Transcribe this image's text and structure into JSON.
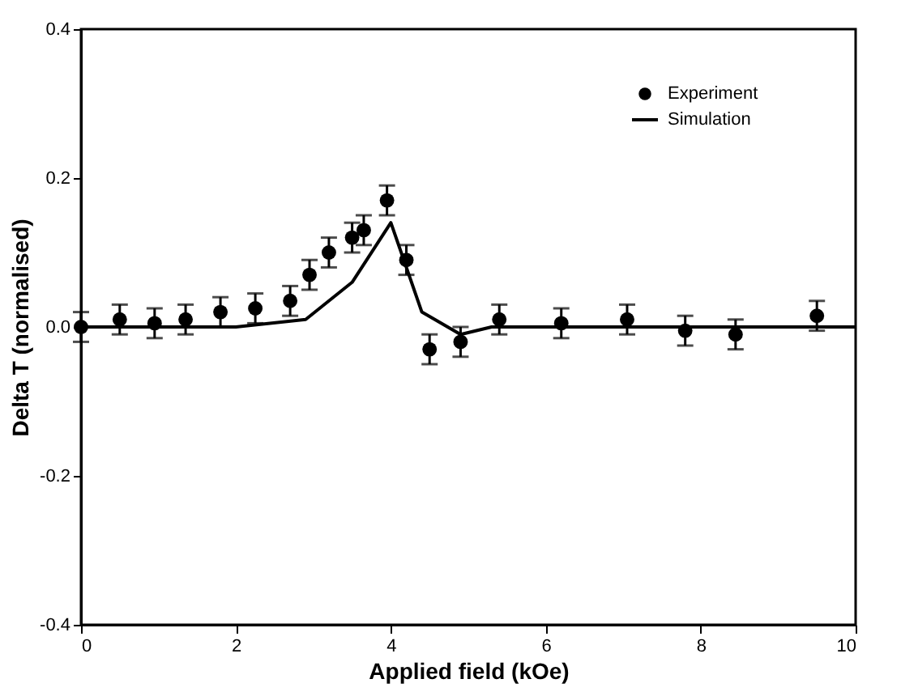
{
  "chart_data": {
    "type": "scatter",
    "xlabel": "Applied field (kOe)",
    "ylabel": "Delta T (normalised)",
    "xlim": [
      0,
      10
    ],
    "xticks": [
      0,
      2,
      4,
      6,
      8,
      10
    ],
    "ylim": [
      -0.4,
      0.4
    ],
    "yticks": [
      -0.4,
      -0.2,
      {
        "value": 0,
        "label": "0.0"
      },
      0.2,
      0.4
    ],
    "grid": false,
    "legend": "top right",
    "series": [
      {
        "name": "Experiment",
        "marker": "circle",
        "color": "#000000",
        "x": [
          0,
          0.5,
          0.95,
          1.35,
          1.8,
          2.25,
          2.7,
          2.95,
          3.2,
          3.5,
          3.65,
          3.95,
          4.2,
          4.5,
          4.9,
          5.4,
          6.2,
          7.05,
          7.8,
          8.45,
          9.5
        ],
        "values": [
          0,
          0.01,
          0.005,
          0.01,
          0.02,
          0.025,
          0.035,
          0.07,
          0.1,
          0.12,
          0.13,
          0.17,
          0.09,
          -0.03,
          -0.02,
          0.01,
          0.005,
          0.01,
          -0.005,
          -0.01,
          0.015
        ],
        "errors": [
          0.02,
          0.02,
          0.02,
          0.02,
          0.02,
          0.02,
          0.02,
          0.02,
          0.02,
          0.02,
          0.02,
          0.02,
          0.02,
          0.02,
          0.02,
          0.02,
          0.02,
          0.02,
          0.02,
          0.02,
          0.02
        ]
      },
      {
        "name": "Simulation",
        "type": "line",
        "line_style": "solid",
        "color": "#000000",
        "x": [
          0,
          2,
          2.9,
          3.5,
          4,
          4.4,
          4.9,
          5.3,
          10
        ],
        "values": [
          0,
          0,
          0.01,
          0.06,
          0.14,
          0.02,
          -0.01,
          0,
          0
        ]
      }
    ]
  }
}
